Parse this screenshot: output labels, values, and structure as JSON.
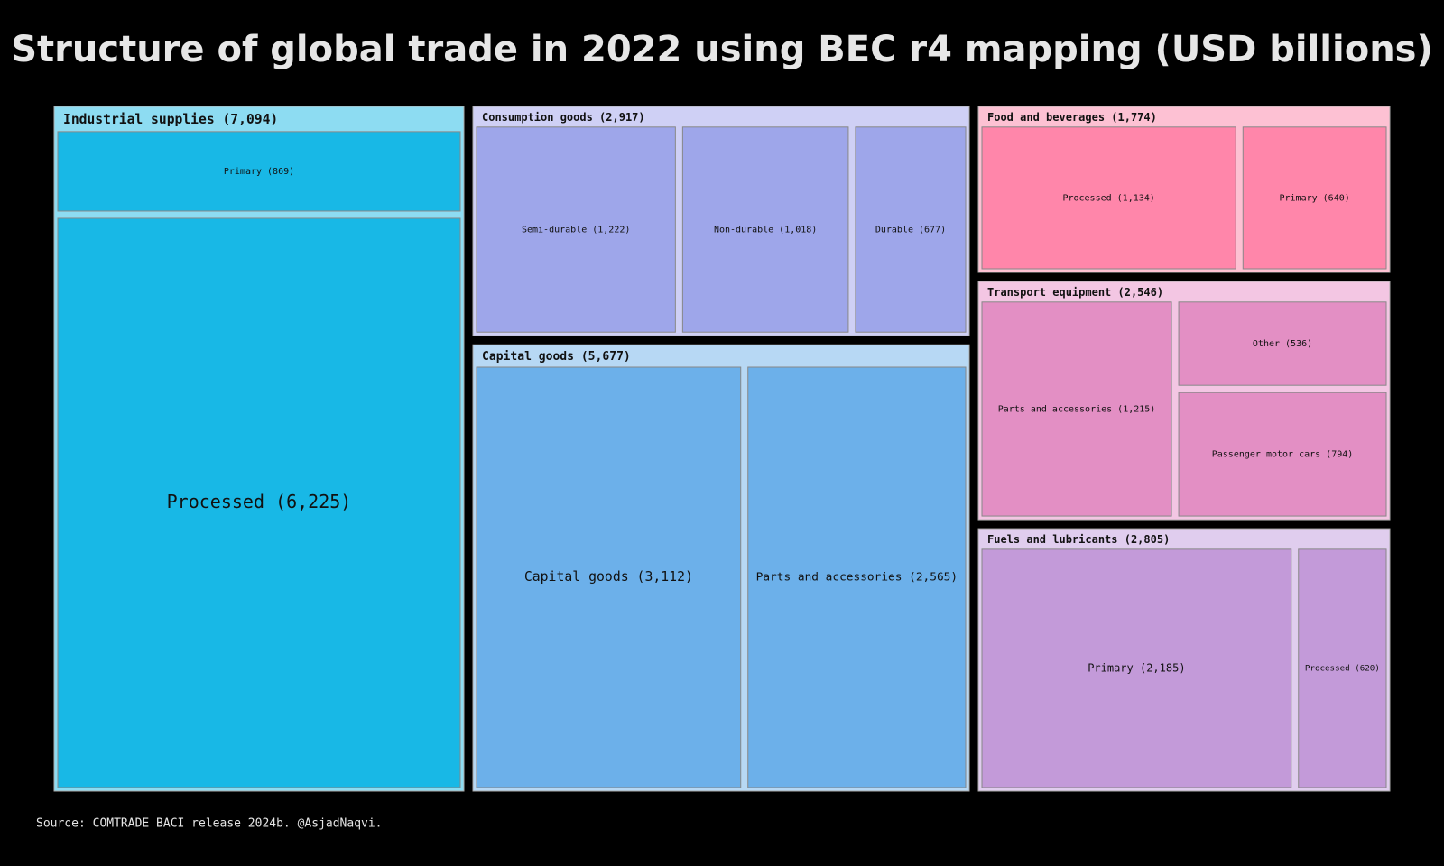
{
  "chart_data": {
    "type": "treemap",
    "title": "Structure of global trade in 2022 using BEC r4 mapping (USD billions)",
    "source": "Source: COMTRADE BACI release 2024b. @AsjadNaqvi.",
    "groups": [
      {
        "label": "Industrial supplies (7,094)",
        "value": 7094,
        "color": "#8ddcf2",
        "children": [
          {
            "label": "Primary (869)",
            "value": 869,
            "color": "#18b8e6"
          },
          {
            "label": "Processed (6,225)",
            "value": 6225,
            "color": "#18b8e6"
          }
        ]
      },
      {
        "label": "Consumption goods (2,917)",
        "value": 2917,
        "color": "#cfd0f5",
        "children": [
          {
            "label": "Semi-durable (1,222)",
            "value": 1222,
            "color": "#9ea6ea"
          },
          {
            "label": "Non-durable (1,018)",
            "value": 1018,
            "color": "#9ea6ea"
          },
          {
            "label": "Durable (677)",
            "value": 677,
            "color": "#9ea6ea"
          }
        ]
      },
      {
        "label": "Capital goods (5,677)",
        "value": 5677,
        "color": "#b7d8f4",
        "children": [
          {
            "label": "Capital goods (3,112)",
            "value": 3112,
            "color": "#6cb0ea"
          },
          {
            "label": "Parts and accessories (2,565)",
            "value": 2565,
            "color": "#6cb0ea"
          }
        ]
      },
      {
        "label": "Food and beverages (1,774)",
        "value": 1774,
        "color": "#fdc1d3",
        "children": [
          {
            "label": "Processed (1,134)",
            "value": 1134,
            "color": "#ff86aa"
          },
          {
            "label": "Primary (640)",
            "value": 640,
            "color": "#ff86aa"
          }
        ]
      },
      {
        "label": "Transport equipment (2,546)",
        "value": 2546,
        "color": "#f3c6e3",
        "children": [
          {
            "label": "Parts and accessories (1,215)",
            "value": 1215,
            "color": "#e38fc4"
          },
          {
            "label": "Other (536)",
            "value": 536,
            "color": "#e38fc4"
          },
          {
            "label": "Passenger motor cars (794)",
            "value": 794,
            "color": "#e38fc4"
          }
        ]
      },
      {
        "label": "Fuels and lubricants (2,805)",
        "value": 2805,
        "color": "#e0cdee",
        "children": [
          {
            "label": "Primary (2,185)",
            "value": 2185,
            "color": "#c39ad9"
          },
          {
            "label": "Processed (620)",
            "value": 620,
            "color": "#c39ad9"
          }
        ]
      }
    ]
  }
}
